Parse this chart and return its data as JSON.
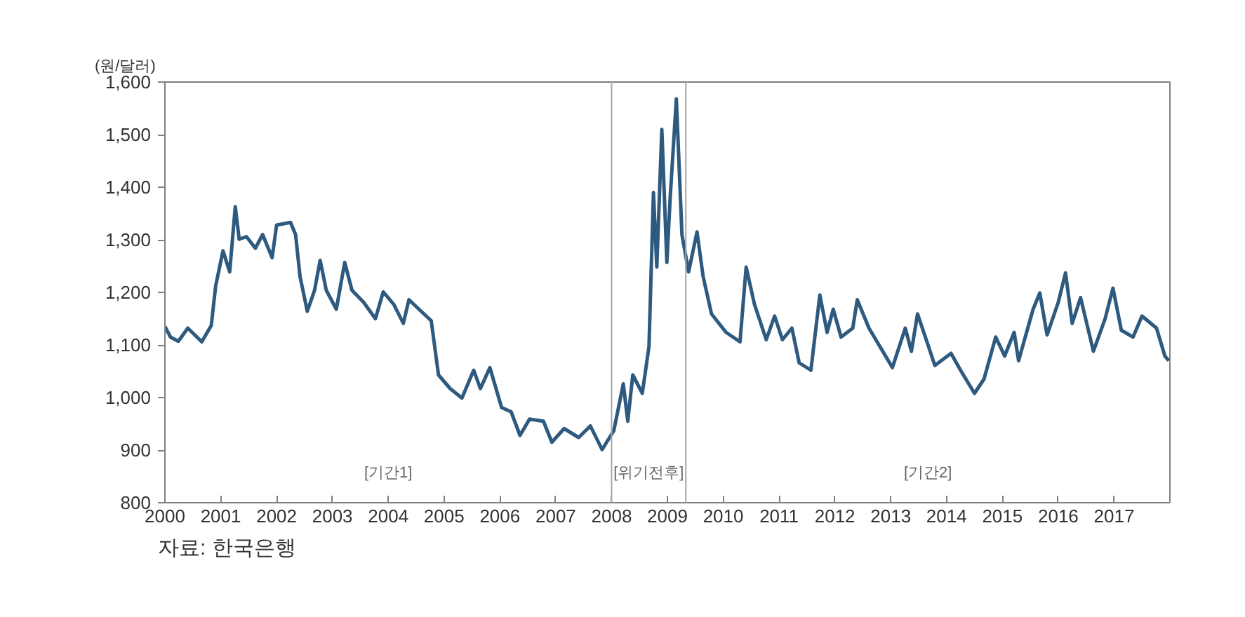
{
  "chart_data": {
    "type": "line",
    "ylabel": "(원/달러)",
    "x": [
      2000.0,
      2000.1,
      2000.24,
      2000.41,
      2000.66,
      2000.83,
      2000.91,
      2001.04,
      2001.16,
      2001.26,
      2001.33,
      2001.46,
      2001.62,
      2001.75,
      2001.92,
      2002.0,
      2002.25,
      2002.34,
      2002.42,
      2002.55,
      2002.68,
      2002.78,
      2002.89,
      2003.07,
      2003.22,
      2003.35,
      2003.56,
      2003.77,
      2003.91,
      2004.1,
      2004.27,
      2004.37,
      2004.59,
      2004.77,
      2004.9,
      2005.11,
      2005.32,
      2005.53,
      2005.65,
      2005.82,
      2006.03,
      2006.2,
      2006.36,
      2006.53,
      2006.78,
      2006.93,
      2007.15,
      2007.41,
      2007.62,
      2007.83,
      2008.04,
      2008.21,
      2008.29,
      2008.38,
      2008.55,
      2008.67,
      2008.75,
      2008.81,
      2008.9,
      2008.99,
      2009.05,
      2009.16,
      2009.26,
      2009.38,
      2009.53,
      2009.64,
      2009.79,
      2010.05,
      2010.3,
      2010.41,
      2010.56,
      2010.77,
      2010.92,
      2011.06,
      2011.23,
      2011.36,
      2011.57,
      2011.73,
      2011.86,
      2011.97,
      2012.11,
      2012.32,
      2012.4,
      2012.61,
      2013.03,
      2013.26,
      2013.37,
      2013.48,
      2013.62,
      2013.79,
      2014.08,
      2014.25,
      2014.5,
      2014.67,
      2014.88,
      2015.04,
      2015.21,
      2015.29,
      2015.55,
      2015.67,
      2015.8,
      2016.0,
      2016.13,
      2016.25,
      2016.4,
      2016.63,
      2016.84,
      2016.98,
      2017.13,
      2017.34,
      2017.5,
      2017.76,
      2017.91,
      2017.98
    ],
    "series": [
      {
        "color": "#2e5a7f",
        "values": [
          1135,
          1115,
          1107,
          1132,
          1106,
          1137,
          1213,
          1279,
          1239,
          1363,
          1301,
          1306,
          1284,
          1310,
          1266,
          1328,
          1333,
          1310,
          1230,
          1164,
          1204,
          1261,
          1204,
          1168,
          1257,
          1204,
          1181,
          1150,
          1201,
          1177,
          1141,
          1186,
          1164,
          1146,
          1043,
          1017,
          999,
          1052,
          1017,
          1057,
          981,
          973,
          928,
          959,
          955,
          915,
          941,
          924,
          946,
          901,
          937,
          1026,
          955,
          1043,
          1008,
          1097,
          1390,
          1248,
          1510,
          1257,
          1381,
          1568,
          1310,
          1239,
          1315,
          1230,
          1159,
          1124,
          1106,
          1248,
          1177,
          1110,
          1155,
          1110,
          1132,
          1066,
          1052,
          1195,
          1124,
          1168,
          1115,
          1132,
          1186,
          1132,
          1057,
          1132,
          1088,
          1159,
          1115,
          1061,
          1084,
          1052,
          1008,
          1035,
          1115,
          1079,
          1124,
          1070,
          1168,
          1199,
          1119,
          1181,
          1237,
          1141,
          1190,
          1088,
          1150,
          1208,
          1128,
          1115,
          1155,
          1132,
          1079,
          1070
        ]
      }
    ],
    "xlim": [
      2000,
      2018
    ],
    "xticks": [
      2000,
      2001,
      2002,
      2003,
      2004,
      2005,
      2006,
      2007,
      2008,
      2009,
      2010,
      2011,
      2012,
      2013,
      2014,
      2015,
      2016,
      2017
    ],
    "ylim": [
      800,
      1600
    ],
    "yticks": [
      800,
      900,
      {
        "value": 1000,
        "label": "1,000"
      },
      {
        "value": 1100,
        "label": "1,100"
      },
      {
        "value": 1200,
        "label": "1,200"
      },
      {
        "value": 1300,
        "label": "1,300"
      },
      {
        "value": 1400,
        "label": "1,400"
      },
      {
        "value": 1500,
        "label": "1,500"
      },
      {
        "value": 1600,
        "label": "1,600"
      }
    ],
    "ref_lines": [
      {
        "axis": "x",
        "value": 2008.0,
        "color": "#a6a6a6"
      },
      {
        "axis": "x",
        "value": 2009.33,
        "color": "#a6a6a6"
      }
    ],
    "annotations": [
      "[기간1]",
      "[위기전후]",
      "[기간2]",
      "자료: 한국은행"
    ],
    "grid": false,
    "marker": "none",
    "line_style": "solid"
  }
}
